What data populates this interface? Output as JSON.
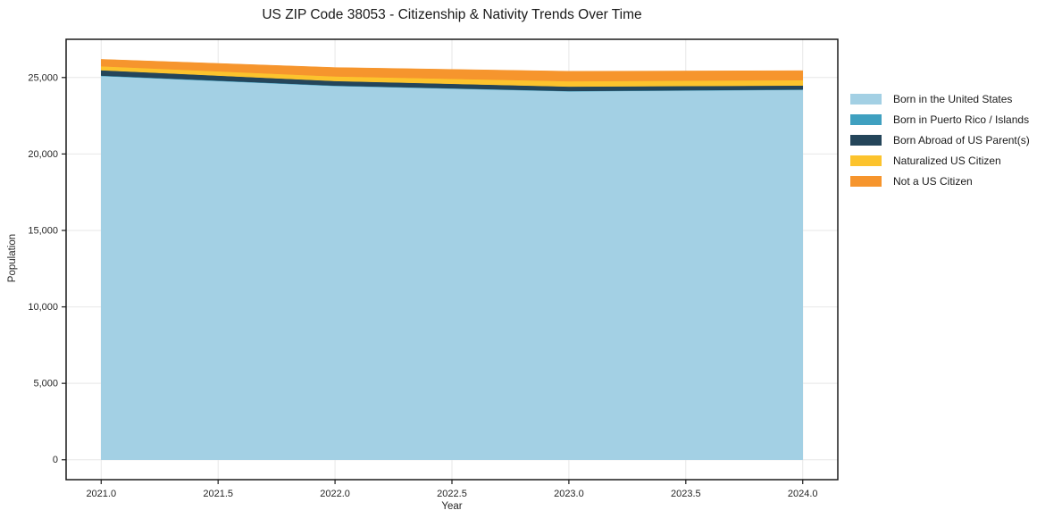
{
  "figure": {
    "background": "#ffffff"
  },
  "chart_data": {
    "type": "area",
    "stacked": true,
    "title": "US ZIP Code 38053 - Citizenship & Nativity Trends Over Time",
    "xlabel": "Year",
    "ylabel": "Population",
    "x": [
      2021,
      2022,
      2023,
      2024
    ],
    "series": [
      {
        "name": "Born in the United States",
        "color": "#a3d0e4",
        "values": [
          25100,
          24450,
          24100,
          24200
        ]
      },
      {
        "name": "Born in Puerto Rico / Islands",
        "color": "#3fa0c0",
        "values": [
          30,
          25,
          20,
          20
        ]
      },
      {
        "name": "Born Abroad of US Parent(s)",
        "color": "#24455a",
        "values": [
          350,
          300,
          290,
          260
        ]
      },
      {
        "name": "Naturalized US Citizen",
        "color": "#fcc32d",
        "values": [
          260,
          300,
          350,
          350
        ]
      },
      {
        "name": "Not a US Citizen",
        "color": "#f6952d",
        "values": [
          450,
          580,
          650,
          620
        ]
      }
    ],
    "totals": [
      26190,
      25655,
      25410,
      25450
    ],
    "xlim": [
      2020.85,
      2024.15
    ],
    "ylim": [
      -1300,
      27500
    ],
    "x_ticks": [
      {
        "value": 2021.0,
        "label": "2021.0"
      },
      {
        "value": 2021.5,
        "label": "2021.5"
      },
      {
        "value": 2022.0,
        "label": "2022.0"
      },
      {
        "value": 2022.5,
        "label": "2022.5"
      },
      {
        "value": 2023.0,
        "label": "2023.0"
      },
      {
        "value": 2023.5,
        "label": "2023.5"
      },
      {
        "value": 2024.0,
        "label": "2024.0"
      }
    ],
    "y_ticks": [
      {
        "value": 0,
        "label": "0"
      },
      {
        "value": 5000,
        "label": "5,000"
      },
      {
        "value": 10000,
        "label": "10,000"
      },
      {
        "value": 15000,
        "label": "15,000"
      },
      {
        "value": 20000,
        "label": "20,000"
      },
      {
        "value": 25000,
        "label": "25,000"
      }
    ],
    "grid": true,
    "grid_color": "#e7e7e7",
    "frame_color": "#1a1a1a",
    "tick_label_color": "#262626",
    "legend_position": "right-outside"
  }
}
